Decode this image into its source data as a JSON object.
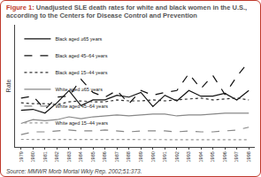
{
  "chart_data": {
    "type": "line",
    "title": "Figure 1: Unadjusted SLE death rates for white and black women in the U.S., according to the Centers for Disease Control and Prevention",
    "source": "Source: MMWR Morb Mortal Wkly Rep. 2002;51:373.",
    "y_label": "Rate",
    "x": [
      1979,
      1980,
      1981,
      1982,
      1983,
      1984,
      1985,
      1986,
      1987,
      1988,
      1989,
      1990,
      1991,
      1992,
      1993,
      1994,
      1995,
      1996,
      1997,
      1998
    ],
    "xlim": [
      1978.5,
      1998.5
    ],
    "xticks": [
      1979,
      1980,
      1981,
      1982,
      1983,
      1984,
      1985,
      1986,
      1987,
      1988,
      1989,
      1990,
      1991,
      1992,
      1993,
      1994,
      1995,
      1996,
      1997,
      1998
    ],
    "ylim": [
      0,
      650
    ],
    "tick_labels": "x",
    "grid": false,
    "legend": "upper left",
    "series": [
      {
        "name": "Black aged ≥65 years",
        "color": "#111111",
        "line_style": "solid",
        "values": [
          195,
          200,
          180,
          235,
          300,
          220,
          250,
          250,
          275,
          265,
          290,
          215,
          275,
          245,
          300,
          270,
          270,
          285,
          250,
          300
        ]
      },
      {
        "name": "Black aged 45–64 years",
        "color": "#111111",
        "line_style": "dash",
        "values": [
          260,
          270,
          200,
          265,
          270,
          360,
          290,
          265,
          300,
          230,
          300,
          275,
          290,
          300,
          390,
          310,
          380,
          280,
          375,
          455
        ]
      },
      {
        "name": "Black aged 15–44 years",
        "color": "#333333",
        "line_style": "dot",
        "values": [
          235,
          230,
          230,
          225,
          240,
          245,
          240,
          240,
          250,
          245,
          245,
          250,
          245,
          250,
          255,
          260,
          250,
          255,
          260,
          250
        ]
      },
      {
        "name": "White aged ≥65 years",
        "color": "#888888",
        "line_style": "solid",
        "values": [
          125,
          145,
          140,
          145,
          160,
          150,
          160,
          165,
          170,
          165,
          170,
          175,
          175,
          165,
          170,
          170,
          175,
          180,
          180,
          180
        ]
      },
      {
        "name": "White aged 45–64 years",
        "color": "#888888",
        "line_style": "dash",
        "values": [
          65,
          80,
          80,
          85,
          90,
          85,
          85,
          90,
          85,
          80,
          85,
          85,
          85,
          80,
          85,
          80,
          80,
          85,
          90,
          105
        ]
      },
      {
        "name": "White aged 15–44 years",
        "color": "#999999",
        "line_style": "dot",
        "values": [
          40,
          40,
          40,
          40,
          40,
          40,
          40,
          40,
          38,
          38,
          38,
          40,
          38,
          38,
          38,
          38,
          38,
          38,
          38,
          38
        ]
      }
    ]
  }
}
